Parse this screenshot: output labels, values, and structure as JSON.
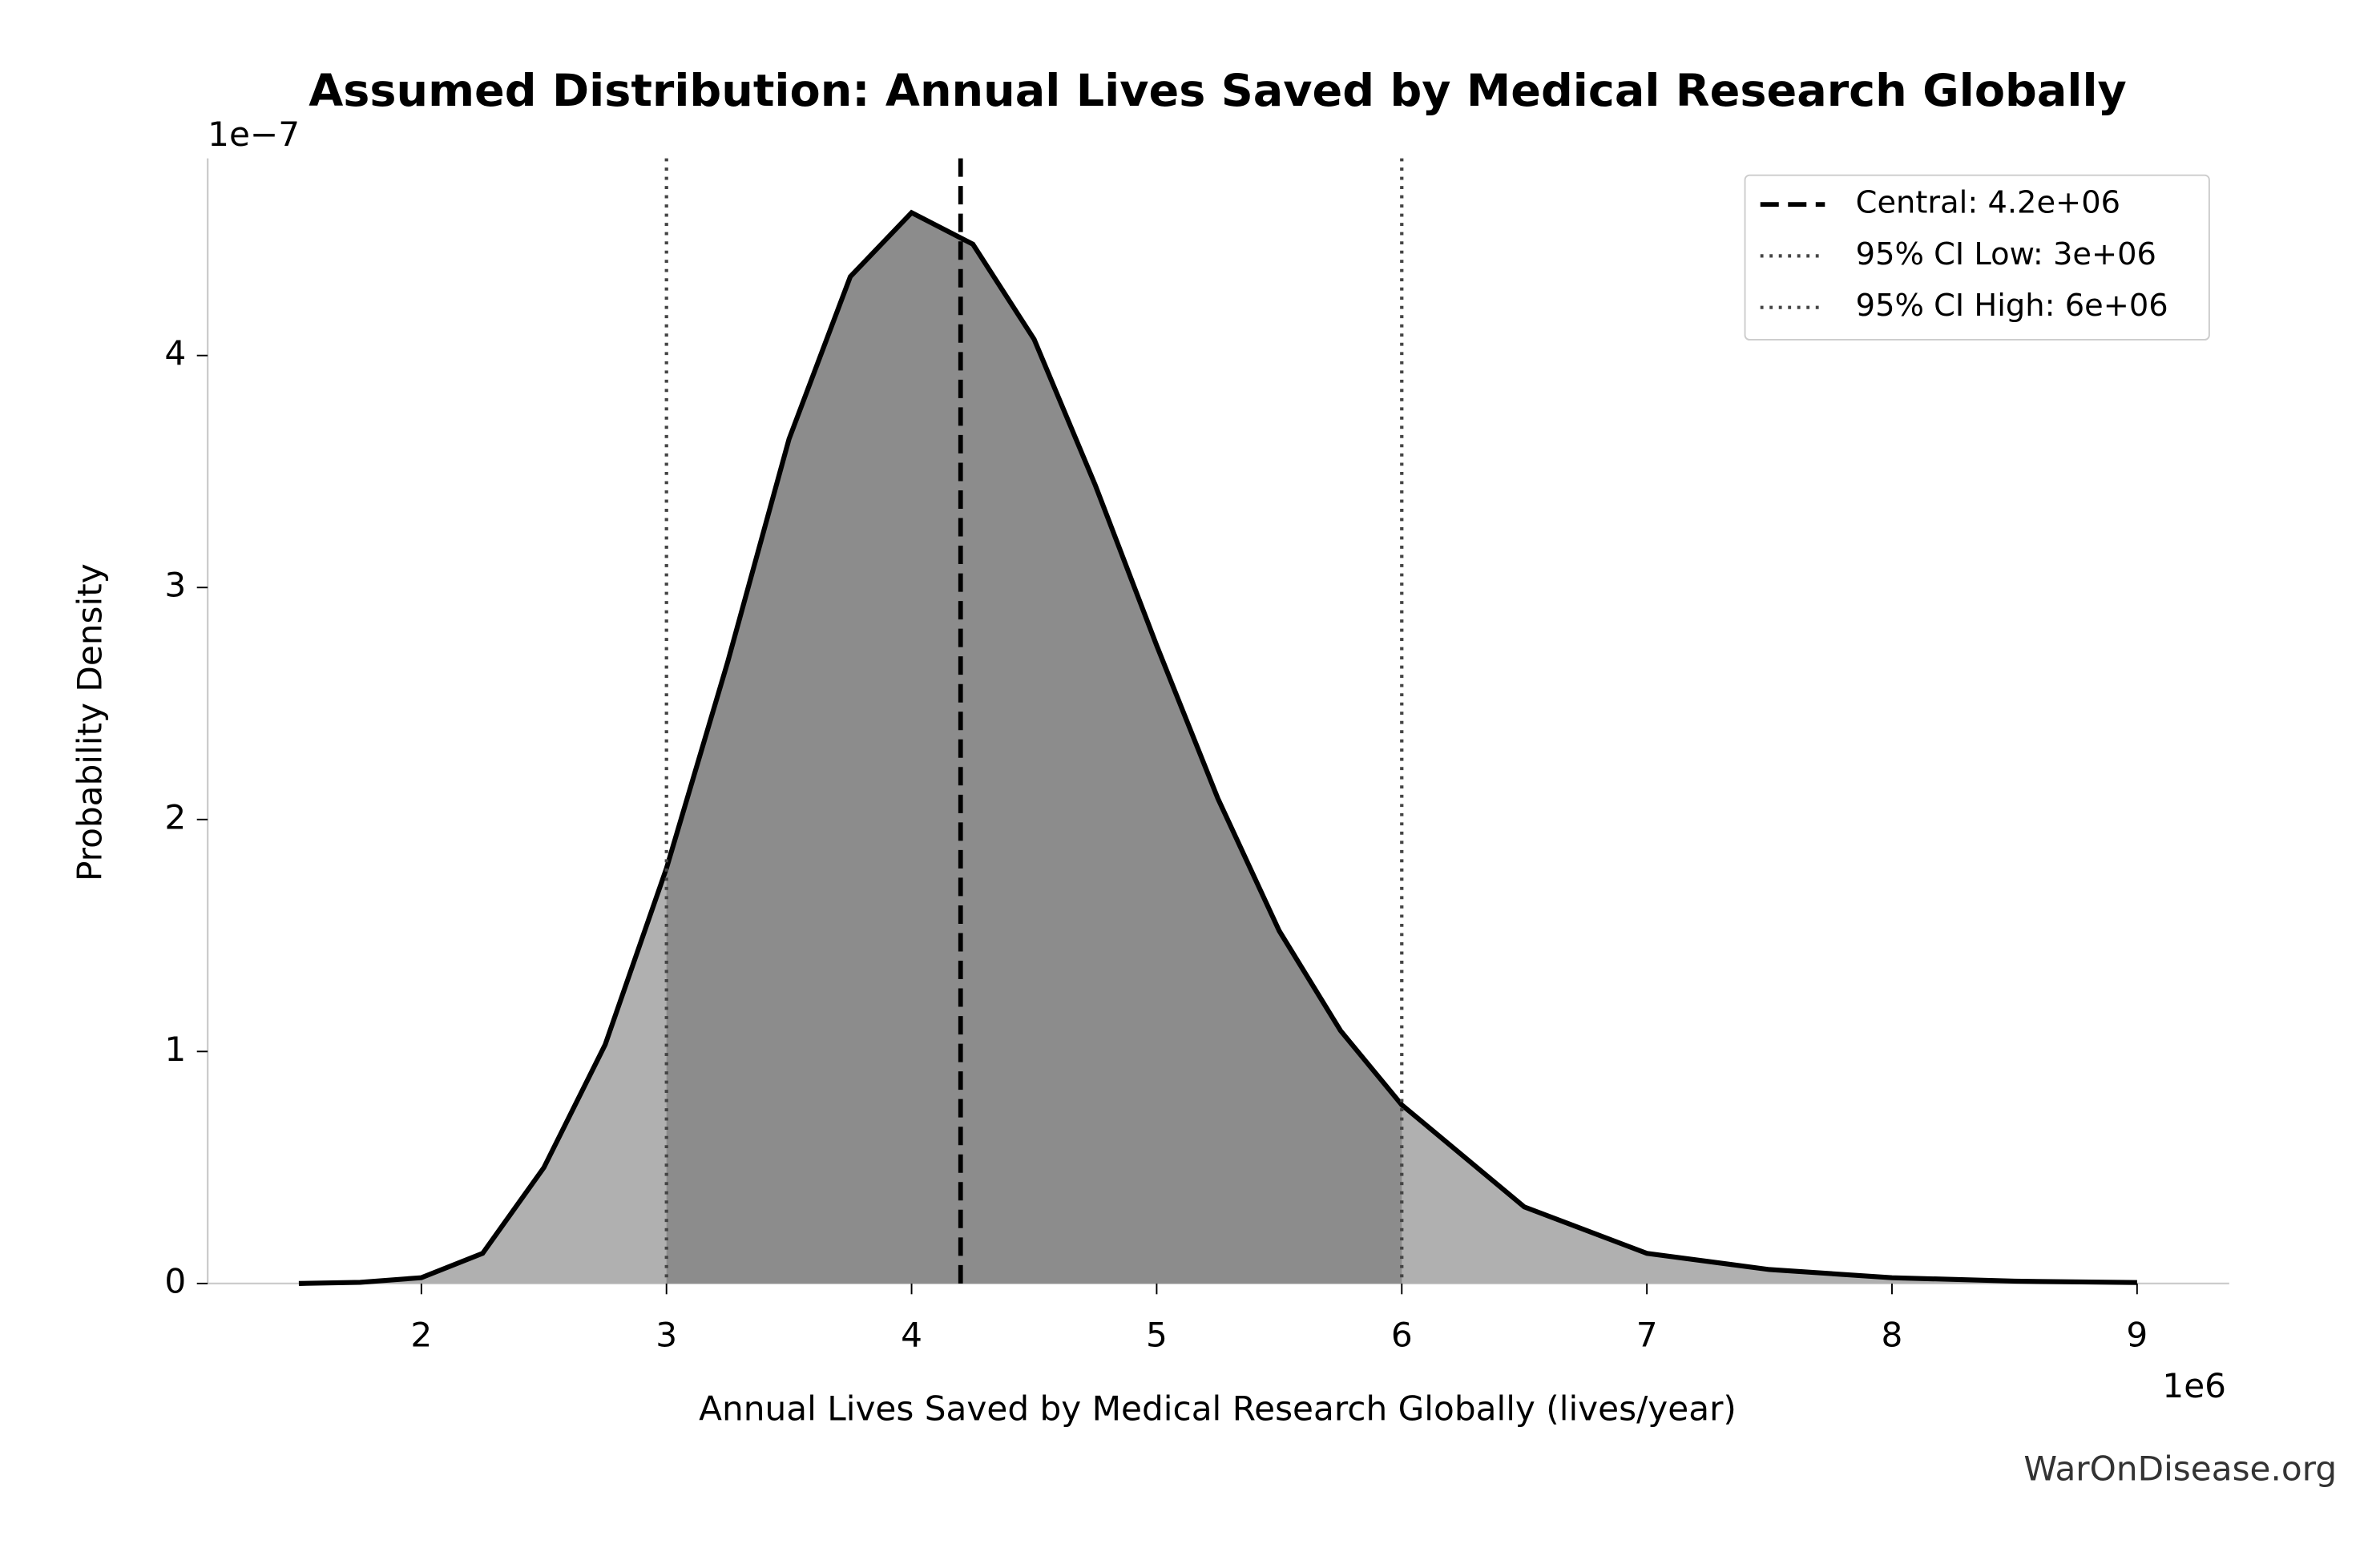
{
  "chart_data": {
    "type": "area",
    "title": "Assumed Distribution: Annual Lives Saved by Medical Research Globally",
    "x_label": "Annual Lives Saved by Medical Research Globally (lives/year)",
    "y_label": "Probability Density",
    "x_offset_label": "1e6",
    "y_offset_label": "1e−7",
    "x": [
      1.5,
      1.75,
      2.0,
      2.25,
      2.5,
      2.75,
      3.0,
      3.25,
      3.5,
      3.75,
      4.0,
      4.25,
      4.5,
      4.75,
      5.0,
      5.25,
      5.5,
      5.75,
      6.0,
      6.5,
      7.0,
      7.5,
      8.0,
      8.5,
      9.0
    ],
    "values": [
      0.0,
      0.005,
      0.025,
      0.13,
      0.5,
      1.03,
      1.79,
      2.68,
      3.64,
      4.34,
      4.616,
      4.48,
      4.07,
      3.44,
      2.75,
      2.09,
      1.52,
      1.09,
      0.77,
      0.33,
      0.13,
      0.06,
      0.025,
      0.01,
      0.004
    ],
    "line_color": "#000000",
    "fill_color": "#b0b0b0",
    "ci_fill_color": "#8c8c8c",
    "central": {
      "value": 4.2,
      "label": "Central: 4.2e+06"
    },
    "ci_low": {
      "value": 3,
      "label": "95% CI Low: 3e+06"
    },
    "ci_high": {
      "value": 6,
      "label": "95% CI High: 6e+06"
    },
    "xlim": [
      1.128,
      9.376
    ],
    "ylim": [
      0,
      4.85
    ],
    "xticks": [
      2,
      3,
      4,
      5,
      6,
      7,
      8,
      9
    ],
    "yticks": [
      0,
      1,
      2,
      3,
      4
    ],
    "legend": "upper right",
    "watermark": "WarOnDisease.org"
  }
}
